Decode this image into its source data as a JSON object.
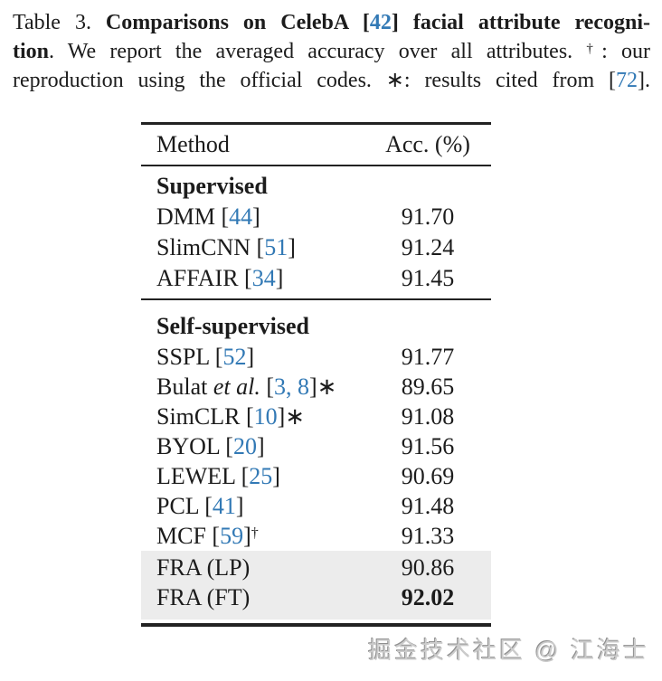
{
  "caption": {
    "line1": {
      "t1": "Table 3. ",
      "t2": "Comparisons on CelebA [",
      "cite": "42",
      "t3": "] facial attribute recogni-"
    },
    "line2": {
      "t1": "tion",
      "t2": ". We report the averaged accuracy over all attributes. ",
      "dagger": "†",
      "t3": ": our"
    },
    "line3": {
      "t1": "reproduction using the official codes. ∗: results cited from [",
      "cite": "72",
      "t2": "]."
    }
  },
  "table": {
    "headers": {
      "method": "Method",
      "acc": "Acc. (%)"
    },
    "sections": [
      {
        "title": "Supervised",
        "rows": [
          {
            "pre": "DMM [",
            "cite": "44",
            "post": "]",
            "acc": "91.70"
          },
          {
            "pre": "SlimCNN [",
            "cite": "51",
            "post": "]",
            "acc": "91.24"
          },
          {
            "pre": "AFFAIR [",
            "cite": "34",
            "post": "]",
            "acc": "91.45"
          }
        ]
      },
      {
        "title": "Self-supervised",
        "rows": [
          {
            "pre": "SSPL [",
            "cite": "52",
            "post": "]",
            "acc": "91.77"
          },
          {
            "pre": "Bulat ",
            "italic": "et al.",
            "pre2": " [",
            "cite": "3, 8",
            "post": "]∗",
            "acc": "89.65"
          },
          {
            "pre": "SimCLR [",
            "cite": "10",
            "post": "]∗",
            "acc": "91.08"
          },
          {
            "pre": "BYOL [",
            "cite": "20",
            "post": "]",
            "acc": "91.56"
          },
          {
            "pre": "LEWEL [",
            "cite": "25",
            "post": "]",
            "acc": "90.69"
          },
          {
            "pre": "PCL [",
            "cite": "41",
            "post": "]",
            "acc": "91.48"
          },
          {
            "pre": "MCF [",
            "cite": "59",
            "post": "]",
            "sup": "†",
            "acc": "91.33"
          },
          {
            "pre": "FRA (LP)",
            "acc": "90.86",
            "highlight": true
          },
          {
            "pre": "FRA (FT)",
            "acc": "92.02",
            "highlight": true,
            "bold_acc": true
          }
        ]
      }
    ]
  },
  "chart_data": {
    "type": "table",
    "title": "Table 3. Comparisons on CelebA [42] facial attribute recognition",
    "columns": [
      "Method",
      "Acc. (%)"
    ],
    "rows": [
      [
        "Supervised",
        ""
      ],
      [
        "DMM [44]",
        "91.70"
      ],
      [
        "SlimCNN [51]",
        "91.24"
      ],
      [
        "AFFAIR [34]",
        "91.45"
      ],
      [
        "Self-supervised",
        ""
      ],
      [
        "SSPL [52]",
        "91.77"
      ],
      [
        "Bulat et al. [3, 8]∗",
        "89.65"
      ],
      [
        "SimCLR [10]∗",
        "91.08"
      ],
      [
        "BYOL [20]",
        "91.56"
      ],
      [
        "LEWEL [25]",
        "90.69"
      ],
      [
        "PCL [41]",
        "91.48"
      ],
      [
        "MCF [59]†",
        "91.33"
      ],
      [
        "FRA (LP)",
        "90.86"
      ],
      [
        "FRA (FT)",
        "92.02"
      ]
    ]
  },
  "watermark": {
    "text": "掘金技术社区 @ 江海士"
  },
  "colors": {
    "citation_blue": "#3279b5",
    "row_highlight": "#ececec",
    "text": "#1c1c1c",
    "rule": "#222222"
  }
}
